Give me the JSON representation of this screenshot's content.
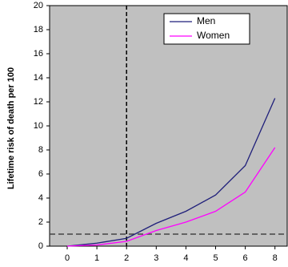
{
  "chart_data": {
    "type": "line",
    "y_label": "Lifetime risk of death per 100",
    "categories": [
      "0",
      "1",
      "2",
      "3",
      "4",
      "5",
      "6",
      "8"
    ],
    "series": [
      {
        "name": "Men",
        "color": "#1f1f7a",
        "values": [
          0,
          0.25,
          0.65,
          1.9,
          2.9,
          4.25,
          6.7,
          12.3
        ]
      },
      {
        "name": "Women",
        "color": "#ff00ff",
        "values": [
          0,
          0.1,
          0.4,
          1.3,
          2.0,
          2.9,
          4.5,
          8.2
        ]
      }
    ],
    "ylim": [
      0,
      20
    ],
    "yticks": [
      0,
      2,
      4,
      6,
      8,
      10,
      12,
      14,
      16,
      18,
      20
    ],
    "reference_x_category": "2",
    "reference_y": 1,
    "background": "#c0c0c0",
    "legend": "upper right"
  }
}
